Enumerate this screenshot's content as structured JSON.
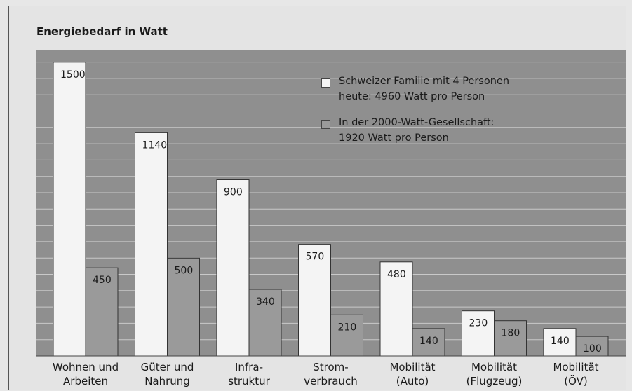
{
  "chart_data": {
    "type": "bar",
    "title": "Energiebedarf in Watt",
    "categories": [
      "Wohnen und\nArbeiten",
      "Güter und\nNahrung",
      "Infra-\nstruktur",
      "Strom-\nverbrauch",
      "Mobilität\n(Auto)",
      "Mobilität\n(Flugzeug)",
      "Mobilität\n(ÖV)"
    ],
    "series": [
      {
        "name": "Schweizer Familie mit 4 Personen\nheute: 4960 Watt pro Person",
        "color": "#f4f4f4",
        "values": [
          1500,
          1140,
          900,
          570,
          480,
          230,
          140
        ]
      },
      {
        "name": "In der 2000-Watt-Gesellschaft:\n1920 Watt pro Person",
        "color": "#9a9a9a",
        "values": [
          450,
          500,
          340,
          210,
          140,
          180,
          100
        ]
      }
    ],
    "ylim": [
      0,
      1560
    ],
    "grid": true,
    "legend_position": "top-right"
  }
}
